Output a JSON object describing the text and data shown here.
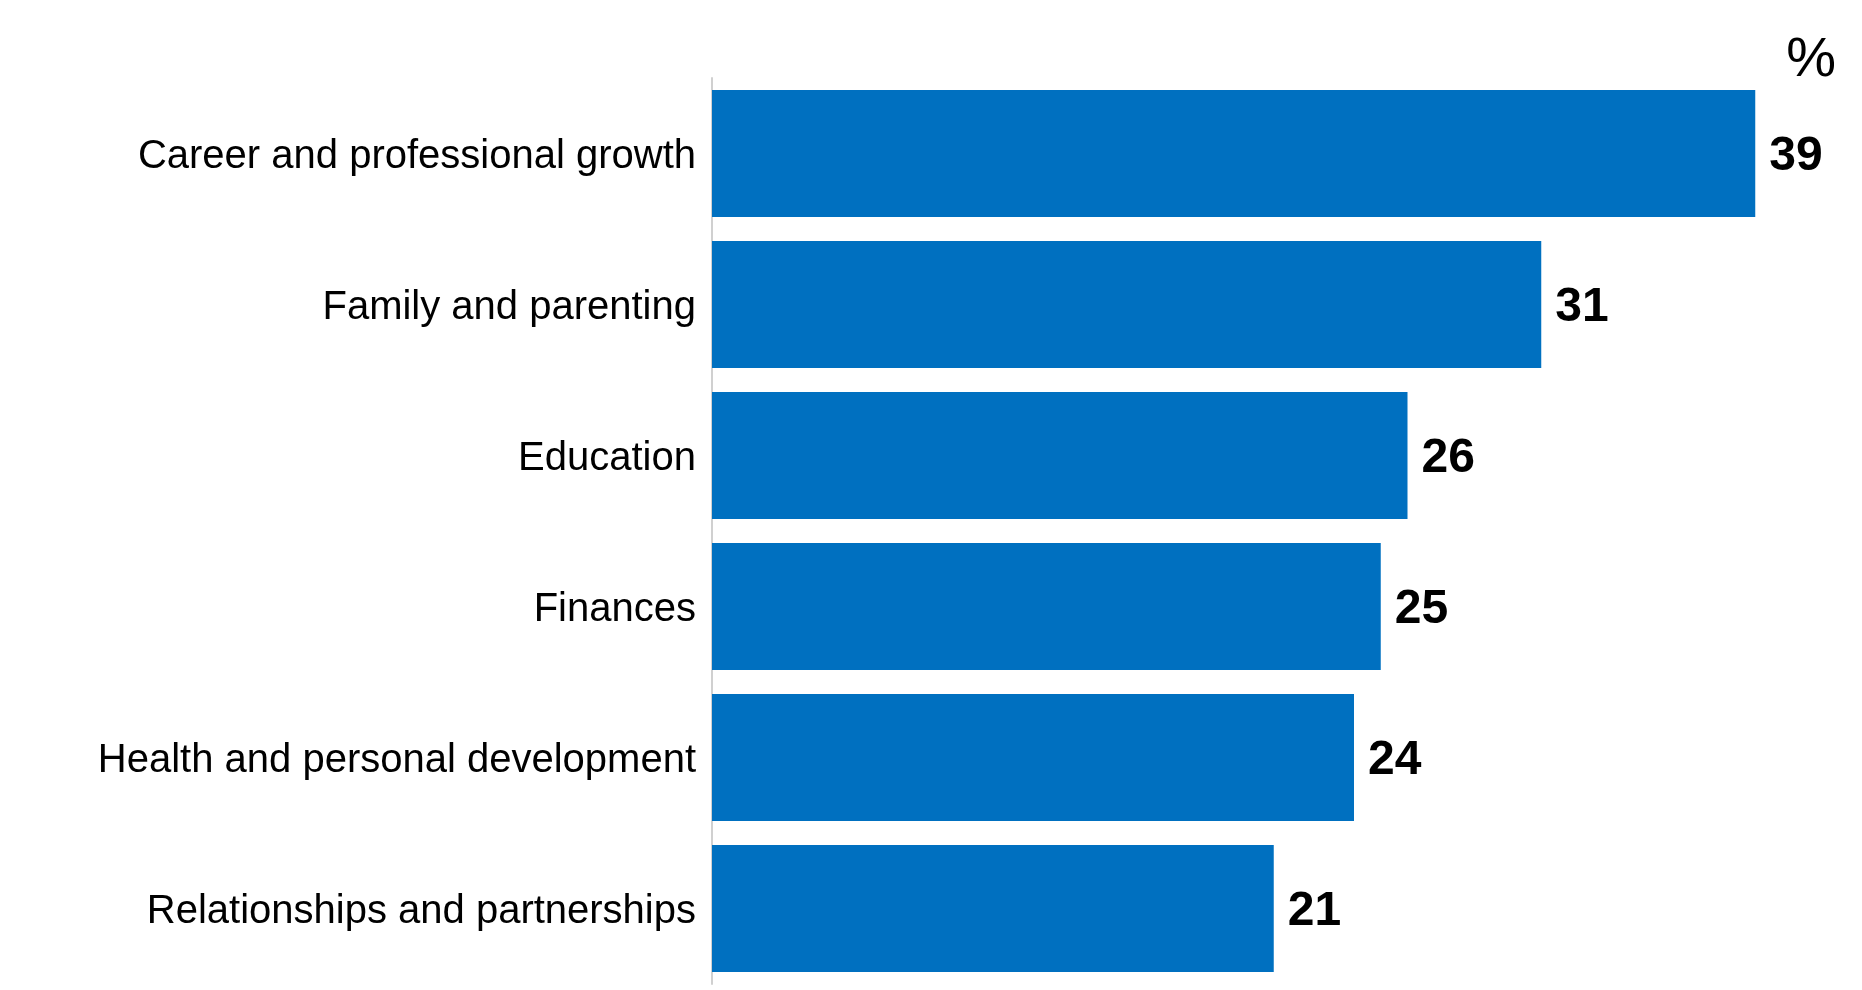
{
  "chart_data": {
    "type": "bar",
    "orientation": "horizontal",
    "categories": [
      "Career and professional growth",
      "Family and parenting",
      "Education",
      "Finances",
      "Health and personal development",
      "Relationships and partnerships"
    ],
    "values": [
      39,
      31,
      26,
      25,
      24,
      21
    ],
    "color": "#0070c0",
    "data_labels": true,
    "annotations": [
      "%"
    ]
  }
}
